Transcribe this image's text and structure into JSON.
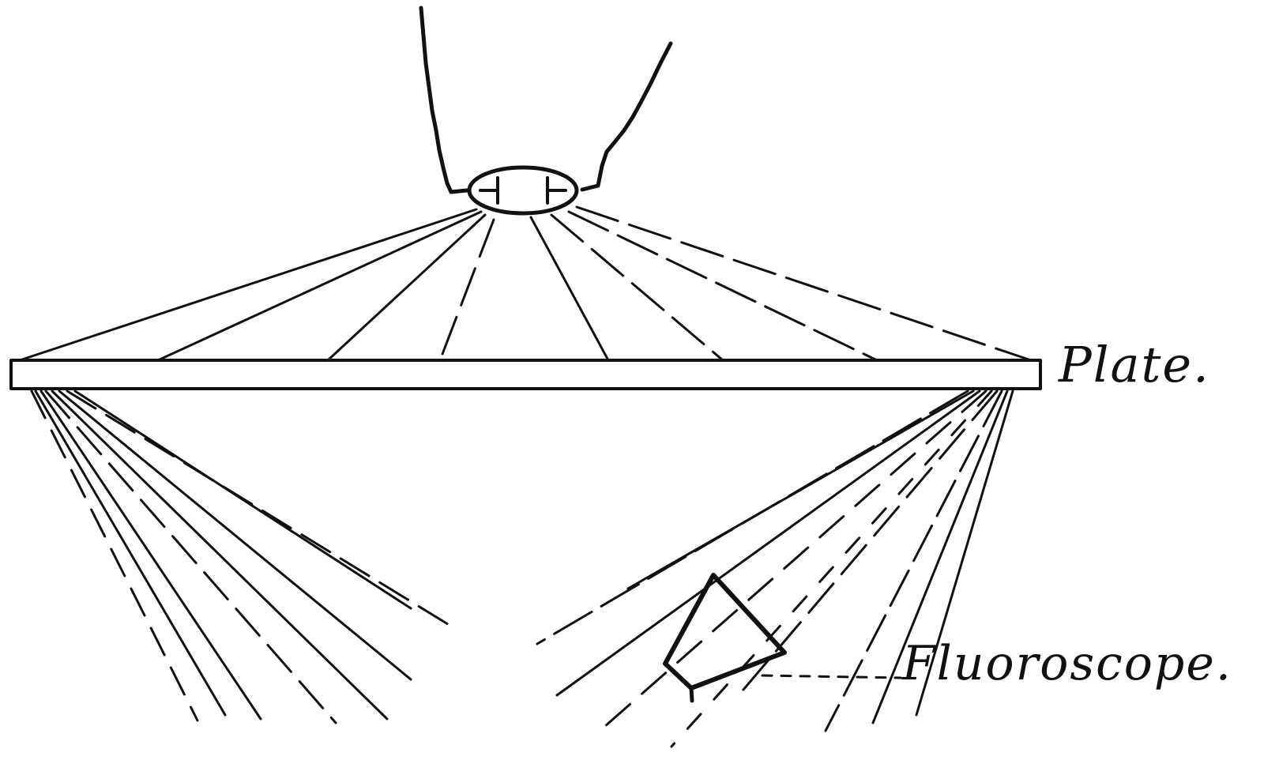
{
  "labels": {
    "plate": "Plate.",
    "fluoroscope": "Fluoroscope."
  },
  "colors": {
    "ink": "#111111",
    "paper": "#ffffff"
  }
}
